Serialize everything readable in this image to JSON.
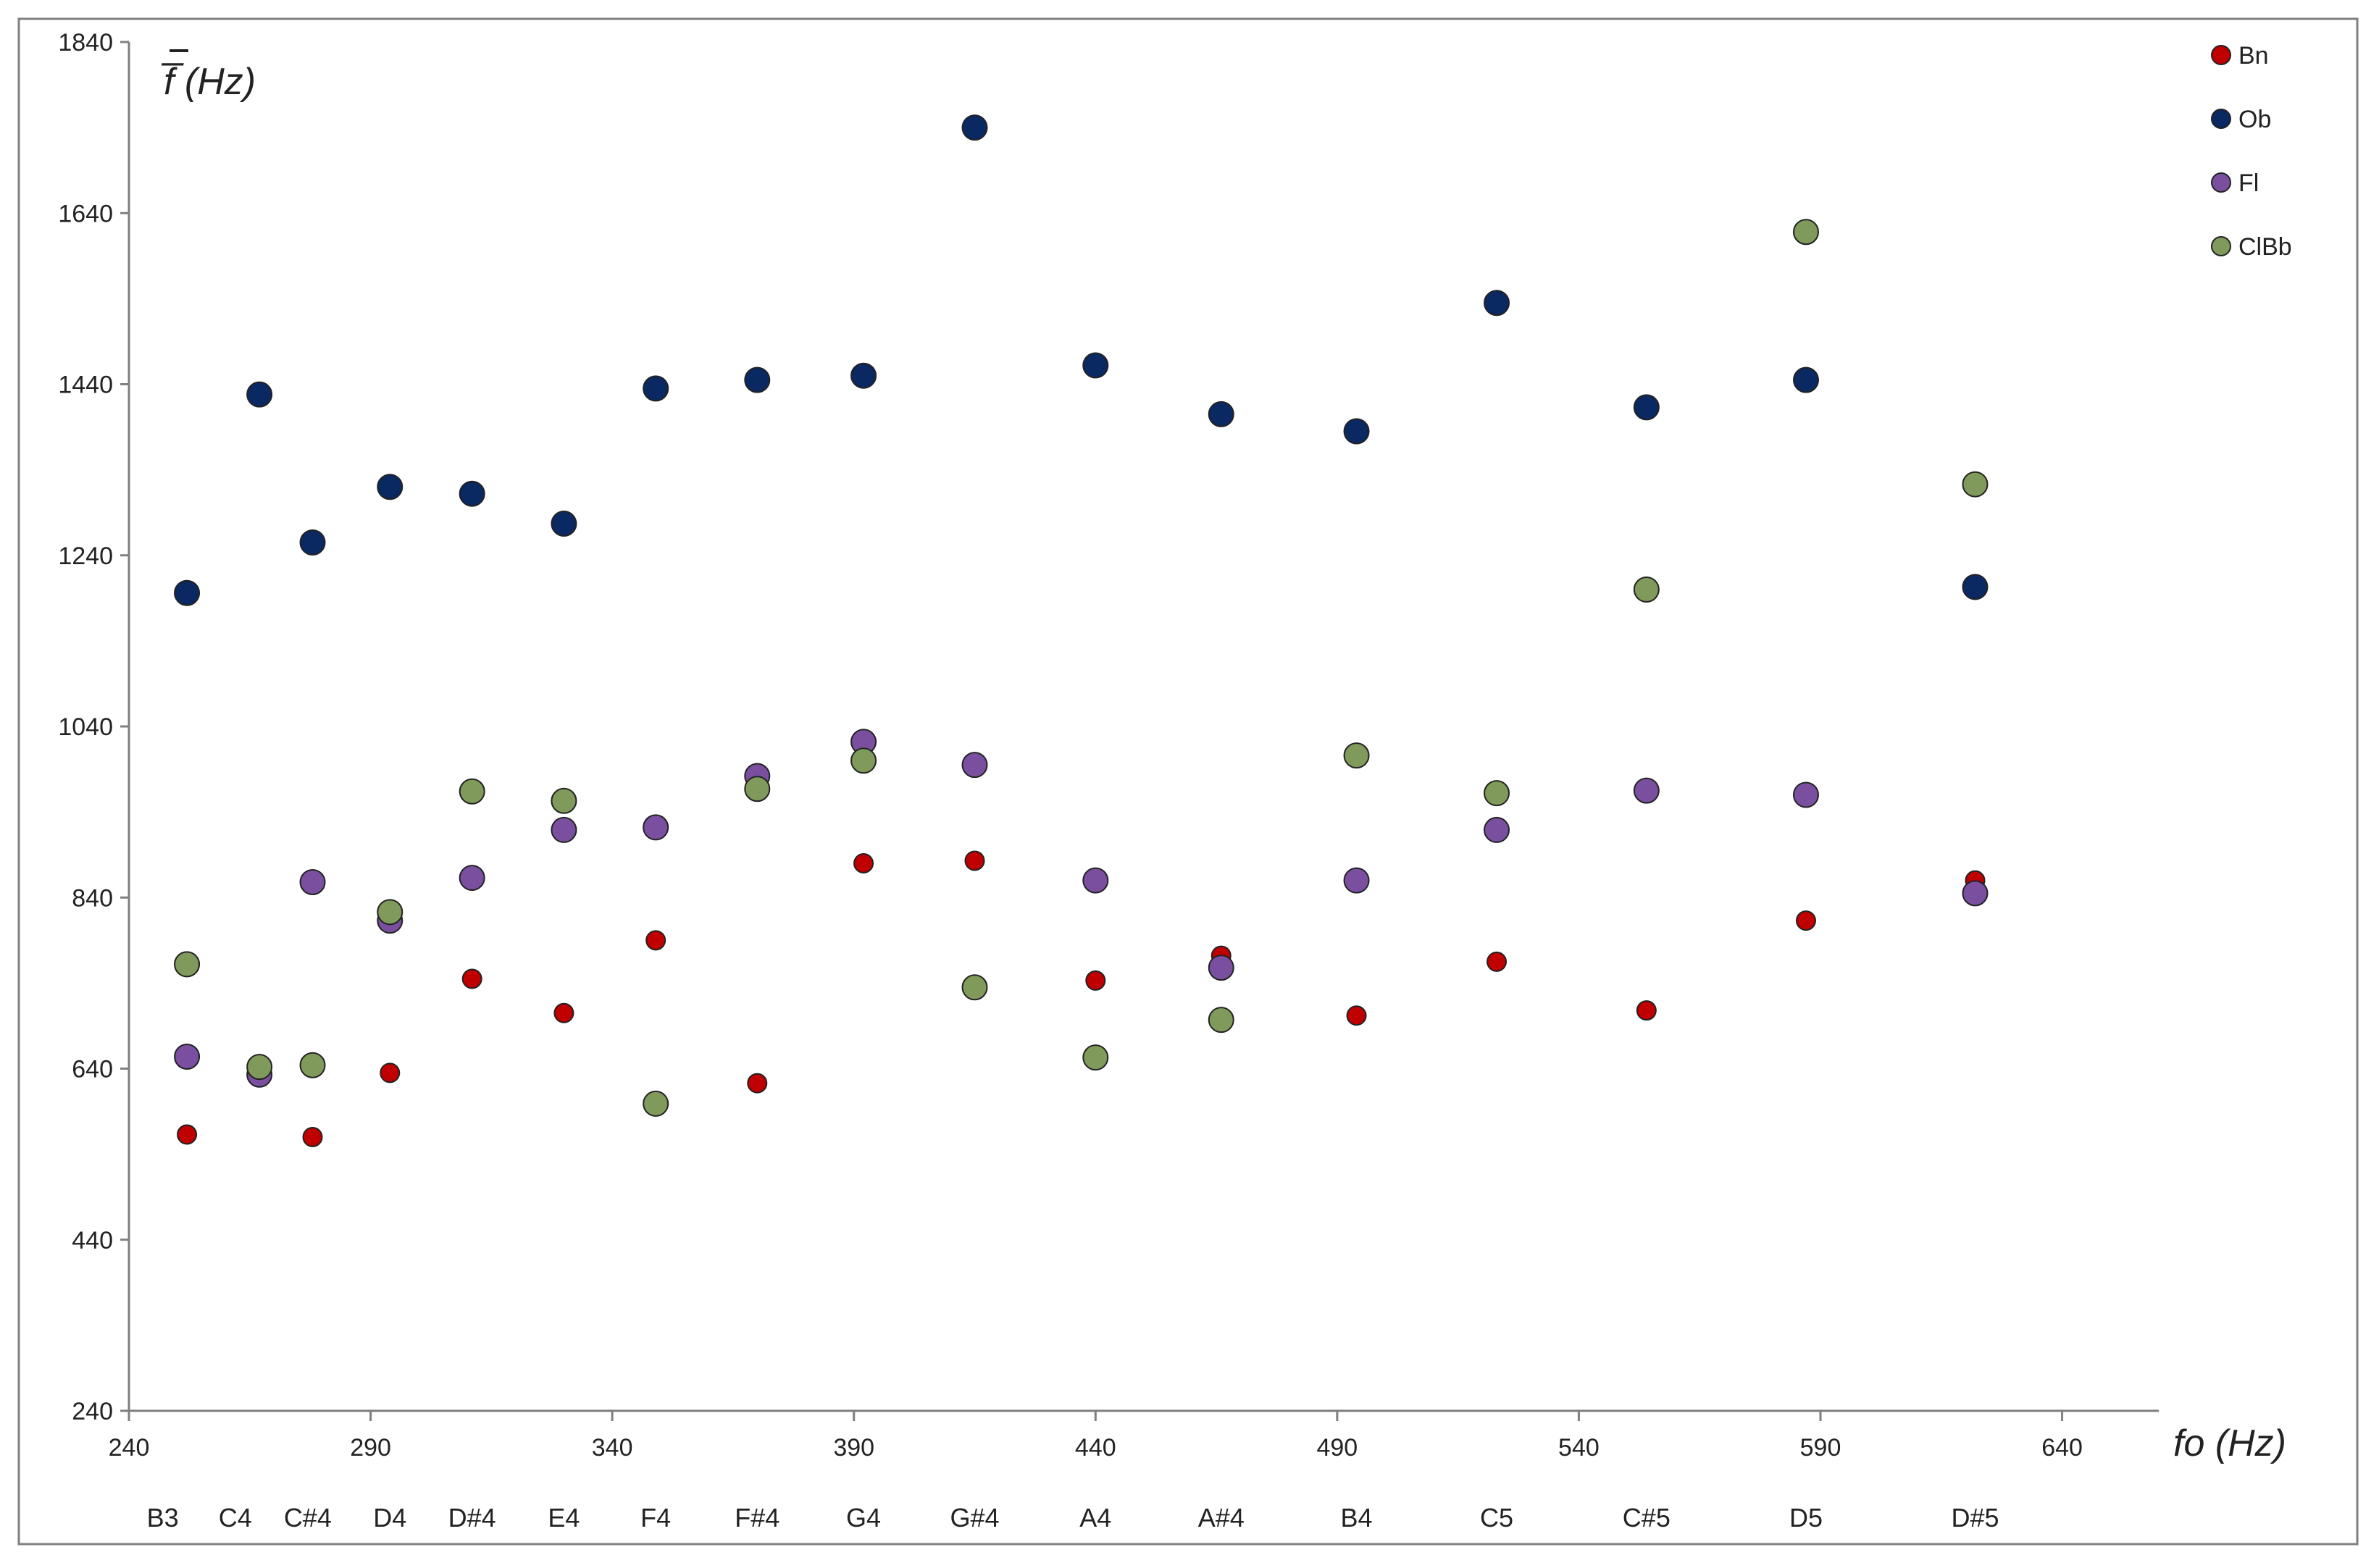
{
  "chart_data": {
    "type": "scatter",
    "title": "",
    "ylabel": "f̅ (Hz)",
    "xlabel": "fo (Hz)",
    "xlim": [
      240,
      660
    ],
    "ylim": [
      240,
      1840
    ],
    "xticks": [
      240,
      290,
      340,
      390,
      440,
      490,
      540,
      590,
      640
    ],
    "yticks": [
      240,
      440,
      640,
      840,
      1040,
      1240,
      1440,
      1640,
      1840
    ],
    "grid": false,
    "legend_position": "top-right",
    "notes": [
      {
        "label": "B3",
        "x": 247
      },
      {
        "label": "C4",
        "x": 262
      },
      {
        "label": "C#4",
        "x": 277
      },
      {
        "label": "D4",
        "x": 294
      },
      {
        "label": "D#4",
        "x": 311
      },
      {
        "label": "E4",
        "x": 330
      },
      {
        "label": "F4",
        "x": 349
      },
      {
        "label": "F#4",
        "x": 370
      },
      {
        "label": "G4",
        "x": 392
      },
      {
        "label": "G#4",
        "x": 415
      },
      {
        "label": "A4",
        "x": 440
      },
      {
        "label": "A#4",
        "x": 466
      },
      {
        "label": "B4",
        "x": 494
      },
      {
        "label": "C5",
        "x": 523
      },
      {
        "label": "C#5",
        "x": 554
      },
      {
        "label": "D5",
        "x": 587
      },
      {
        "label": "D#5",
        "x": 622
      }
    ],
    "series": [
      {
        "name": "Bn",
        "color": "#c00000",
        "points": [
          [
            252,
            563
          ],
          [
            278,
            560
          ],
          [
            294,
            635
          ],
          [
            311,
            745
          ],
          [
            330,
            705
          ],
          [
            349,
            790
          ],
          [
            370,
            623
          ],
          [
            392,
            880
          ],
          [
            415,
            883
          ],
          [
            440,
            743
          ],
          [
            466,
            772
          ],
          [
            494,
            702
          ],
          [
            523,
            765
          ],
          [
            554,
            708
          ],
          [
            587,
            813
          ],
          [
            622,
            860
          ]
        ]
      },
      {
        "name": "Ob",
        "color": "#0a2862",
        "points": [
          [
            252,
            1196
          ],
          [
            267,
            1428
          ],
          [
            278,
            1255
          ],
          [
            294,
            1320
          ],
          [
            311,
            1312
          ],
          [
            330,
            1277
          ],
          [
            349,
            1435
          ],
          [
            370,
            1445
          ],
          [
            392,
            1450
          ],
          [
            415,
            1740
          ],
          [
            440,
            1462
          ],
          [
            466,
            1405
          ],
          [
            494,
            1385
          ],
          [
            523,
            1535
          ],
          [
            554,
            1413
          ],
          [
            587,
            1445
          ],
          [
            622,
            1203
          ]
        ]
      },
      {
        "name": "Fl",
        "color": "#7a4fa0",
        "points": [
          [
            252,
            654
          ],
          [
            267,
            633
          ],
          [
            278,
            858
          ],
          [
            294,
            813
          ],
          [
            311,
            863
          ],
          [
            330,
            919
          ],
          [
            349,
            922
          ],
          [
            370,
            982
          ],
          [
            392,
            1022
          ],
          [
            415,
            995
          ],
          [
            440,
            860
          ],
          [
            466,
            758
          ],
          [
            494,
            860
          ],
          [
            523,
            919
          ],
          [
            554,
            965
          ],
          [
            587,
            960
          ],
          [
            622,
            845
          ]
        ]
      },
      {
        "name": "ClBb",
        "color": "#7f9a5a",
        "points": [
          [
            252,
            762
          ],
          [
            267,
            642
          ],
          [
            278,
            644
          ],
          [
            294,
            823
          ],
          [
            311,
            964
          ],
          [
            330,
            953
          ],
          [
            349,
            599
          ],
          [
            370,
            967
          ],
          [
            392,
            1000
          ],
          [
            415,
            735
          ],
          [
            440,
            653
          ],
          [
            466,
            697
          ],
          [
            494,
            1006
          ],
          [
            523,
            962
          ],
          [
            554,
            1200
          ],
          [
            587,
            1618
          ],
          [
            622,
            1323
          ]
        ]
      }
    ]
  }
}
